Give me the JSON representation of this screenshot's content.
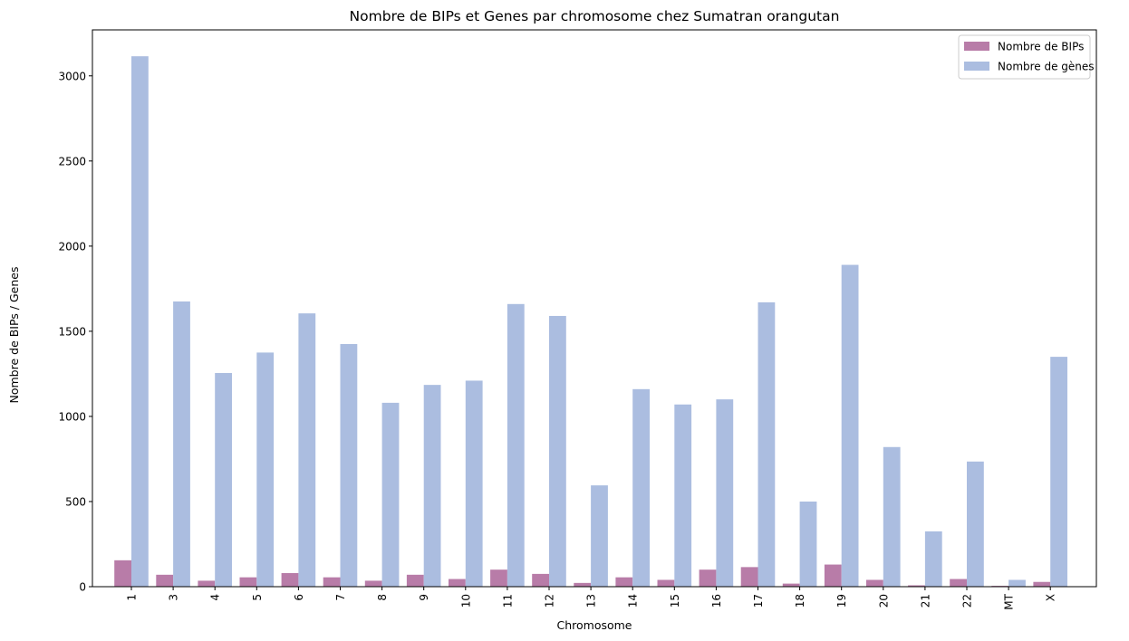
{
  "chart_data": {
    "type": "bar",
    "title": "Nombre de BIPs et Genes par chromosome chez Sumatran orangutan",
    "xlabel": "Chromosome",
    "ylabel": "Nombre de BIPs / Genes",
    "ylim": [
      0,
      3270
    ],
    "yticks": [
      0,
      500,
      1000,
      1500,
      2000,
      2500,
      3000
    ],
    "grid": false,
    "legend_position": "top-right",
    "categories": [
      "1",
      "3",
      "4",
      "5",
      "6",
      "7",
      "8",
      "9",
      "10",
      "11",
      "12",
      "13",
      "14",
      "15",
      "16",
      "17",
      "18",
      "19",
      "20",
      "21",
      "22",
      "MT",
      "X"
    ],
    "series": [
      {
        "name": "Nombre de BIPs",
        "color": "#b87ca8",
        "values": [
          155,
          70,
          35,
          55,
          80,
          55,
          35,
          70,
          45,
          100,
          75,
          22,
          55,
          40,
          100,
          115,
          18,
          130,
          40,
          8,
          45,
          5,
          28
        ]
      },
      {
        "name": "Nombre de gènes",
        "color": "#abbde0",
        "values": [
          3115,
          1675,
          1255,
          1375,
          1605,
          1425,
          1080,
          1185,
          1210,
          1660,
          1590,
          595,
          1160,
          1070,
          1100,
          1670,
          500,
          1890,
          820,
          325,
          735,
          40,
          1350
        ]
      }
    ]
  }
}
